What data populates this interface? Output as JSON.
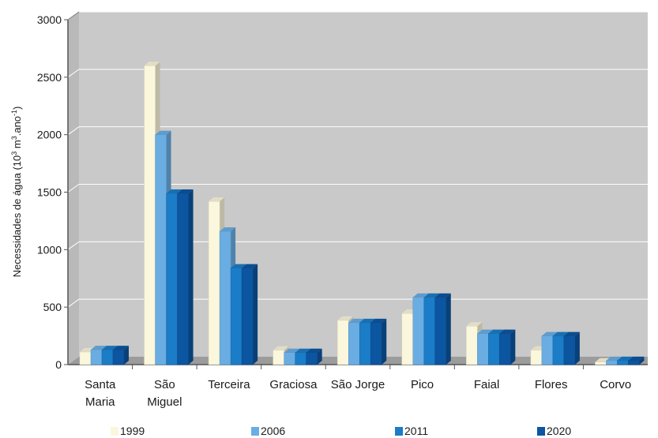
{
  "chart_data": {
    "type": "bar",
    "title": "",
    "xlabel": "",
    "ylabel": "Necessidades de água (10³ m³.ano⁻¹)",
    "ylabel_parts": [
      "Necessidades de água (10",
      "3",
      " m",
      "3",
      ".ano",
      "-1",
      ")"
    ],
    "ylim": [
      0,
      3000
    ],
    "yticks": [
      "0",
      "500",
      "1000",
      "1500",
      "2000",
      "2500",
      "3000"
    ],
    "grid": true,
    "legend_position": "bottom",
    "categories": [
      [
        "Santa",
        "Maria"
      ],
      [
        "São",
        "Miguel"
      ],
      [
        "Terceira"
      ],
      [
        "Graciosa"
      ],
      [
        "São Jorge"
      ],
      [
        "Pico"
      ],
      [
        "Faial"
      ],
      [
        "Flores"
      ],
      [
        "Corvo"
      ]
    ],
    "series": [
      {
        "name": "1999",
        "color": "#fbf7dc",
        "values": [
          110,
          2600,
          1420,
          125,
          385,
          445,
          335,
          125,
          22
        ]
      },
      {
        "name": "2006",
        "color": "#6aade2",
        "values": [
          130,
          2000,
          1160,
          105,
          365,
          585,
          270,
          250,
          35
        ]
      },
      {
        "name": "2011",
        "color": "#1b7cc7",
        "values": [
          130,
          1490,
          840,
          105,
          365,
          585,
          270,
          250,
          35
        ]
      },
      {
        "name": "2020",
        "color": "#0c55a0",
        "values": [
          130,
          1490,
          840,
          105,
          365,
          585,
          270,
          250,
          35
        ]
      }
    ],
    "colors": {
      "plot_background": "#c9c9c9",
      "grid": "#ffffff"
    }
  }
}
